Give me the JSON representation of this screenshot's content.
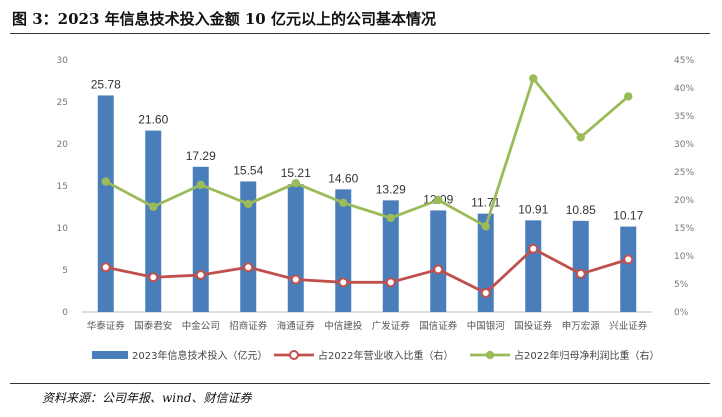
{
  "figure_title": "图 3：2023 年信息技术投入金额 10 亿元以上的公司基本情况",
  "source": "资料来源：公司年报、wind、财信证券",
  "colors": {
    "bar": "#4a7ebb",
    "line_revenue": "#c0504d",
    "line_profit": "#9bbb59",
    "axis": "#bfbfbf"
  },
  "chart_data": {
    "type": "bar",
    "categories": [
      "华泰证券",
      "国泰君安",
      "中金公司",
      "招商证券",
      "海通证券",
      "中信建投",
      "广发证券",
      "国信证券",
      "中国银河",
      "国投证券",
      "申万宏源",
      "兴业证券"
    ],
    "y_left": {
      "lim": [
        0,
        30
      ],
      "ticks": [
        "0",
        "5",
        "10",
        "15",
        "20",
        "25",
        "30"
      ]
    },
    "y_right": {
      "lim": [
        0,
        45
      ],
      "ticks": [
        "0%",
        "5%",
        "10%",
        "15%",
        "20%",
        "25%",
        "30%",
        "35%",
        "40%",
        "45%"
      ]
    },
    "grid": false,
    "legend_position": "bottom",
    "series": [
      {
        "name": "2023年信息技术投入（亿元）",
        "kind": "bar",
        "axis": "left",
        "values": [
          25.78,
          21.6,
          17.29,
          15.54,
          15.21,
          14.6,
          13.29,
          12.09,
          11.71,
          10.91,
          10.85,
          10.17
        ],
        "labels": [
          "25.78",
          "21.60",
          "17.29",
          "15.54",
          "15.21",
          "14.60",
          "13.29",
          "12.09",
          "11.71",
          "10.91",
          "10.85",
          "10.17"
        ]
      },
      {
        "name": "占2022年营业收入比重（右）",
        "kind": "line",
        "axis": "right",
        "marker": "hollow-circle",
        "values": [
          8.0,
          6.2,
          6.6,
          8.0,
          5.8,
          5.3,
          5.3,
          7.6,
          3.4,
          11.3,
          6.8,
          9.4
        ]
      },
      {
        "name": "占2022年归母净利润比重（右）",
        "kind": "line",
        "axis": "right",
        "marker": "filled-circle",
        "values": [
          23.3,
          18.8,
          22.7,
          19.3,
          23.0,
          19.5,
          16.8,
          20.0,
          15.3,
          41.7,
          31.2,
          38.5
        ]
      }
    ]
  }
}
